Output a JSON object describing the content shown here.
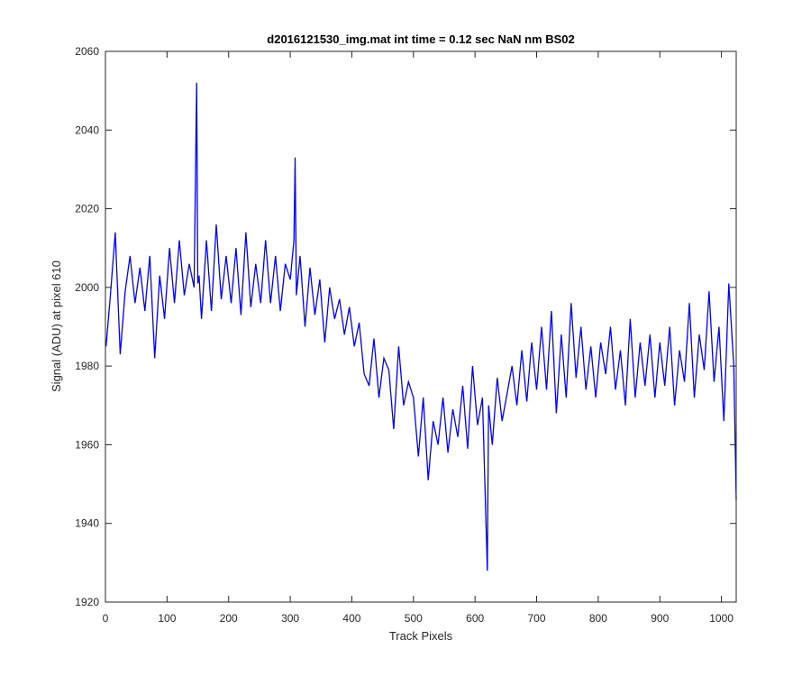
{
  "colors": {
    "line": "#0000ff",
    "axes": "#262626",
    "background": "#ffffff"
  },
  "chart_data": {
    "type": "line",
    "title": "d2016121530_img.mat int time = 0.12 sec  NaN nm BS02",
    "xlabel": "Track Pixels",
    "ylabel": "Signal (ADU) at pixel 610",
    "xlim": [
      0,
      1024
    ],
    "ylim": [
      1920,
      2060
    ],
    "xticks": [
      0,
      100,
      200,
      300,
      400,
      500,
      600,
      700,
      800,
      900,
      1000
    ],
    "yticks": [
      1920,
      1940,
      1960,
      1980,
      2000,
      2020,
      2040,
      2060
    ],
    "grid": false,
    "legend": "none",
    "series": [
      {
        "color": "#0000ff",
        "x": [
          1,
          8,
          16,
          24,
          32,
          40,
          48,
          56,
          64,
          72,
          80,
          88,
          96,
          104,
          112,
          120,
          128,
          136,
          144,
          148,
          150,
          152,
          156,
          164,
          172,
          180,
          188,
          196,
          204,
          212,
          220,
          228,
          236,
          244,
          252,
          260,
          268,
          276,
          284,
          292,
          300,
          306,
          308,
          310,
          316,
          324,
          332,
          340,
          348,
          356,
          364,
          372,
          380,
          388,
          396,
          404,
          412,
          420,
          428,
          436,
          444,
          452,
          460,
          468,
          476,
          484,
          492,
          500,
          508,
          516,
          524,
          532,
          540,
          548,
          556,
          564,
          572,
          580,
          588,
          596,
          604,
          612,
          620,
          622,
          628,
          636,
          644,
          652,
          660,
          668,
          676,
          684,
          692,
          700,
          708,
          716,
          724,
          732,
          740,
          748,
          756,
          764,
          772,
          780,
          788,
          796,
          804,
          812,
          820,
          828,
          836,
          844,
          852,
          860,
          868,
          876,
          884,
          892,
          900,
          908,
          916,
          924,
          932,
          940,
          948,
          956,
          964,
          972,
          980,
          988,
          996,
          1004,
          1012,
          1020,
          1024
        ],
        "y": [
          1985,
          1998,
          2014,
          1983,
          1999,
          2008,
          1996,
          2005,
          1994,
          2008,
          1982,
          2003,
          1992,
          2010,
          1996,
          2012,
          1998,
          2006,
          2000,
          2052,
          2001,
          2003,
          1992,
          2012,
          1994,
          2016,
          1997,
          2008,
          1996,
          2010,
          1993,
          2014,
          1995,
          2006,
          1996,
          2012,
          1996,
          2008,
          1994,
          2006,
          2002,
          2012,
          2033,
          1998,
          2008,
          1990,
          2005,
          1993,
          2002,
          1986,
          2000,
          1992,
          1997,
          1988,
          1995,
          1985,
          1991,
          1978,
          1975,
          1987,
          1972,
          1982,
          1979,
          1964,
          1985,
          1970,
          1976,
          1972,
          1957,
          1972,
          1951,
          1966,
          1960,
          1972,
          1958,
          1969,
          1962,
          1975,
          1959,
          1980,
          1965,
          1972,
          1928,
          1970,
          1960,
          1977,
          1966,
          1973,
          1980,
          1970,
          1984,
          1971,
          1986,
          1974,
          1990,
          1974,
          1994,
          1968,
          1988,
          1972,
          1996,
          1977,
          1990,
          1974,
          1985,
          1972,
          1986,
          1978,
          1990,
          1974,
          1984,
          1970,
          1992,
          1972,
          1986,
          1975,
          1988,
          1972,
          1986,
          1975,
          1990,
          1970,
          1984,
          1976,
          1996,
          1972,
          1988,
          1979,
          1999,
          1976,
          1990,
          1966,
          2001,
          1980,
          1946
        ]
      }
    ]
  }
}
